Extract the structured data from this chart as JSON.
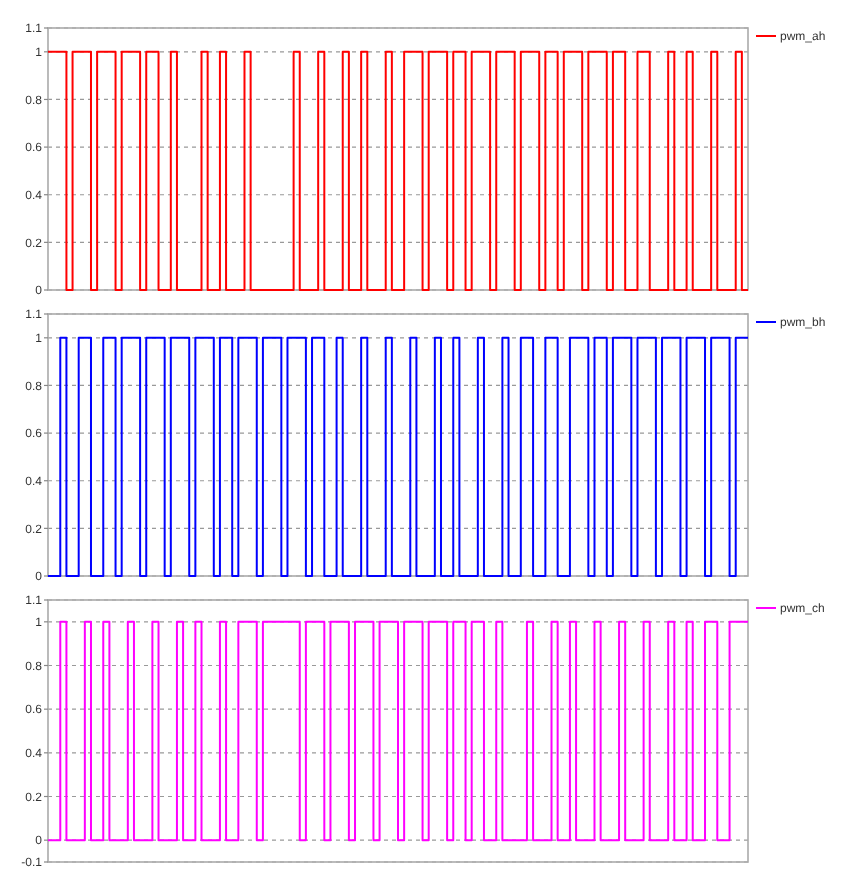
{
  "chart_data": [
    {
      "type": "step",
      "categories": [
        null,
        null,
        null,
        null,
        null,
        null,
        null,
        null,
        null,
        null,
        null,
        null,
        null,
        null,
        null,
        null,
        null,
        null,
        null,
        null,
        null,
        null,
        null,
        null,
        null,
        null,
        null,
        null,
        null,
        null,
        null,
        null,
        null,
        null,
        null,
        null,
        null,
        null,
        null,
        null,
        null,
        null,
        null,
        null,
        null,
        null,
        null,
        null,
        null,
        null,
        null,
        null,
        null,
        null,
        null,
        null,
        null,
        null,
        null,
        null,
        null,
        null,
        null,
        null,
        null,
        null,
        null,
        null,
        null,
        null,
        null,
        null,
        null,
        null,
        null,
        null,
        null,
        null,
        null,
        null,
        null,
        null,
        null,
        null,
        null,
        null,
        null,
        null,
        null,
        null,
        null,
        null,
        null,
        null,
        null,
        null,
        null,
        null,
        null,
        null,
        null,
        null,
        null,
        null,
        null,
        null,
        null,
        null,
        null,
        null,
        null,
        null,
        null,
        null,
        null
      ],
      "ylim": [
        0,
        1.1
      ],
      "yticks": [
        0,
        0.2,
        0.4,
        0.6,
        0.8,
        1,
        1.1
      ],
      "grid": "y",
      "legend": "top right",
      "series": [
        {
          "name": "pwm_ah",
          "color": "#ff0000",
          "values": [
            1,
            1,
            1,
            0,
            1,
            1,
            1,
            0,
            1,
            1,
            1,
            0,
            1,
            1,
            1,
            0,
            1,
            1,
            0,
            0,
            1,
            0,
            0,
            0,
            0,
            1,
            0,
            0,
            1,
            0,
            0,
            0,
            1,
            0,
            0,
            0,
            0,
            0,
            0,
            0,
            1,
            0,
            0,
            0,
            1,
            0,
            0,
            0,
            1,
            0,
            0,
            1,
            0,
            0,
            0,
            1,
            0,
            0,
            1,
            1,
            1,
            0,
            1,
            1,
            1,
            0,
            1,
            1,
            0,
            1,
            1,
            1,
            0,
            1,
            1,
            1,
            0,
            1,
            1,
            1,
            0,
            1,
            1,
            0,
            1,
            1,
            1,
            0,
            1,
            1,
            1,
            0,
            1,
            1,
            0,
            0,
            1,
            1,
            0,
            0,
            0,
            1,
            0,
            0,
            1,
            0,
            0,
            0,
            1,
            0,
            0,
            0,
            1,
            0,
            0
          ]
        }
      ]
    },
    {
      "type": "step",
      "categories": [
        null,
        null,
        null,
        null,
        null,
        null,
        null,
        null,
        null,
        null,
        null,
        null,
        null,
        null,
        null,
        null,
        null,
        null,
        null,
        null,
        null,
        null,
        null,
        null,
        null,
        null,
        null,
        null,
        null,
        null,
        null,
        null,
        null,
        null,
        null,
        null,
        null,
        null,
        null,
        null,
        null,
        null,
        null,
        null,
        null,
        null,
        null,
        null,
        null,
        null,
        null,
        null,
        null,
        null,
        null,
        null,
        null,
        null,
        null,
        null,
        null,
        null,
        null,
        null,
        null,
        null,
        null,
        null,
        null,
        null,
        null,
        null,
        null,
        null,
        null,
        null,
        null,
        null,
        null,
        null,
        null,
        null,
        null,
        null,
        null,
        null,
        null,
        null,
        null,
        null,
        null,
        null,
        null,
        null,
        null,
        null,
        null,
        null,
        null,
        null,
        null,
        null,
        null,
        null,
        null,
        null,
        null,
        null,
        null,
        null,
        null,
        null,
        null,
        null,
        null
      ],
      "ylim": [
        0,
        1.1
      ],
      "yticks": [
        0,
        0.2,
        0.4,
        0.6,
        0.8,
        1,
        1.1
      ],
      "grid": "y",
      "legend": "top right",
      "series": [
        {
          "name": "pwm_bh",
          "color": "#0000ff",
          "values": [
            0,
            0,
            1,
            0,
            0,
            1,
            1,
            0,
            0,
            1,
            1,
            0,
            1,
            1,
            1,
            0,
            1,
            1,
            1,
            0,
            1,
            1,
            1,
            0,
            1,
            1,
            1,
            0,
            1,
            1,
            0,
            1,
            1,
            1,
            0,
            1,
            1,
            1,
            0,
            1,
            1,
            1,
            0,
            1,
            1,
            0,
            0,
            1,
            0,
            0,
            0,
            1,
            0,
            0,
            0,
            1,
            0,
            0,
            0,
            1,
            0,
            0,
            0,
            1,
            0,
            0,
            1,
            0,
            0,
            0,
            1,
            0,
            0,
            0,
            1,
            0,
            0,
            1,
            1,
            0,
            0,
            1,
            1,
            0,
            0,
            1,
            1,
            1,
            0,
            1,
            1,
            0,
            1,
            1,
            1,
            0,
            1,
            1,
            1,
            0,
            1,
            1,
            1,
            0,
            1,
            1,
            1,
            0,
            1,
            1,
            1,
            0,
            1,
            1,
            1
          ]
        }
      ]
    },
    {
      "type": "step",
      "categories": [
        null,
        null,
        null,
        null,
        null,
        null,
        null,
        null,
        null,
        null,
        null,
        null,
        null,
        null,
        null,
        null,
        null,
        null,
        null,
        null,
        null,
        null,
        null,
        null,
        null,
        null,
        null,
        null,
        null,
        null,
        null,
        null,
        null,
        null,
        null,
        null,
        null,
        null,
        null,
        null,
        null,
        null,
        null,
        null,
        null,
        null,
        null,
        null,
        null,
        null,
        null,
        null,
        null,
        null,
        null,
        null,
        null,
        null,
        null,
        null,
        null,
        null,
        null,
        null,
        null,
        null,
        null,
        null,
        null,
        null,
        null,
        null,
        null,
        null,
        null,
        null,
        null,
        null,
        null,
        null,
        null,
        null,
        null,
        null,
        null,
        null,
        null,
        null,
        null,
        null,
        null,
        null,
        null,
        null,
        null,
        null,
        null,
        null,
        null,
        null,
        null,
        null,
        null,
        null,
        null,
        null,
        null,
        null,
        null,
        null,
        null,
        null,
        null,
        null,
        null
      ],
      "ylim": [
        -0.1,
        1.1
      ],
      "yticks": [
        -0.1,
        0,
        0.2,
        0.4,
        0.6,
        0.8,
        1,
        1.1
      ],
      "grid": "y",
      "legend": "top right",
      "series": [
        {
          "name": "pwm_ch",
          "color": "#ff00ff",
          "values": [
            0,
            0,
            1,
            0,
            0,
            0,
            1,
            0,
            0,
            1,
            0,
            0,
            0,
            1,
            0,
            0,
            0,
            1,
            0,
            0,
            0,
            1,
            0,
            0,
            1,
            0,
            0,
            0,
            1,
            0,
            0,
            1,
            1,
            1,
            0,
            1,
            1,
            1,
            1,
            1,
            1,
            0,
            1,
            1,
            1,
            0,
            1,
            1,
            1,
            0,
            1,
            1,
            1,
            0,
            1,
            1,
            1,
            0,
            1,
            1,
            1,
            0,
            1,
            1,
            1,
            0,
            1,
            1,
            0,
            1,
            1,
            0,
            0,
            1,
            0,
            0,
            0,
            0,
            1,
            0,
            0,
            0,
            1,
            0,
            0,
            1,
            0,
            0,
            0,
            1,
            0,
            0,
            0,
            1,
            0,
            0,
            0,
            1,
            0,
            0,
            0,
            1,
            0,
            0,
            1,
            0,
            0,
            1,
            1,
            0,
            0,
            1,
            1,
            1,
            1
          ]
        }
      ]
    }
  ]
}
